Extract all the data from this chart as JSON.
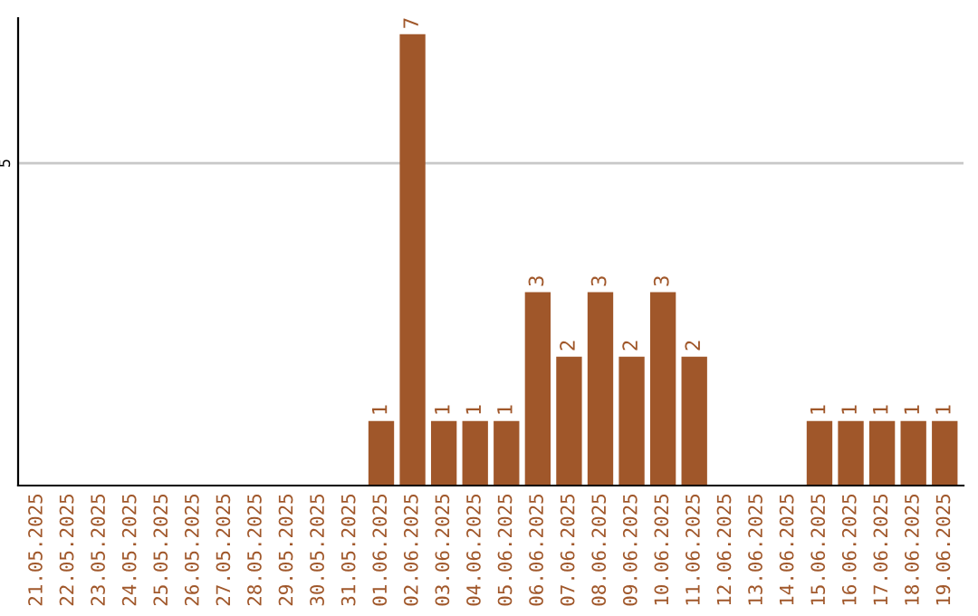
{
  "chart_data": {
    "type": "bar",
    "categories": [
      "21.05.2025",
      "22.05.2025",
      "23.05.2025",
      "24.05.2025",
      "25.05.2025",
      "26.05.2025",
      "27.05.2025",
      "28.05.2025",
      "29.05.2025",
      "30.05.2025",
      "31.05.2025",
      "01.06.2025",
      "02.06.2025",
      "03.06.2025",
      "04.06.2025",
      "05.06.2025",
      "06.06.2025",
      "07.06.2025",
      "08.06.2025",
      "09.06.2025",
      "10.06.2025",
      "11.06.2025",
      "12.06.2025",
      "13.06.2025",
      "14.06.2025",
      "15.06.2025",
      "16.06.2025",
      "17.06.2025",
      "18.06.2025",
      "19.06.2025"
    ],
    "values": [
      0,
      0,
      0,
      0,
      0,
      0,
      0,
      0,
      0,
      0,
      0,
      1,
      7,
      1,
      1,
      1,
      3,
      2,
      3,
      2,
      3,
      2,
      0,
      0,
      0,
      1,
      1,
      1,
      1,
      1
    ],
    "value_labels": [
      null,
      null,
      null,
      null,
      null,
      null,
      null,
      null,
      null,
      null,
      null,
      "1",
      "7",
      "1",
      "1",
      "1",
      "3",
      "2",
      "3",
      "2",
      "3",
      "2",
      null,
      null,
      null,
      "1",
      "1",
      "1",
      "1",
      "1"
    ],
    "color": "#a0572a",
    "ylim": [
      0,
      7.25
    ],
    "yticks": [
      5
    ],
    "grid": "y"
  }
}
